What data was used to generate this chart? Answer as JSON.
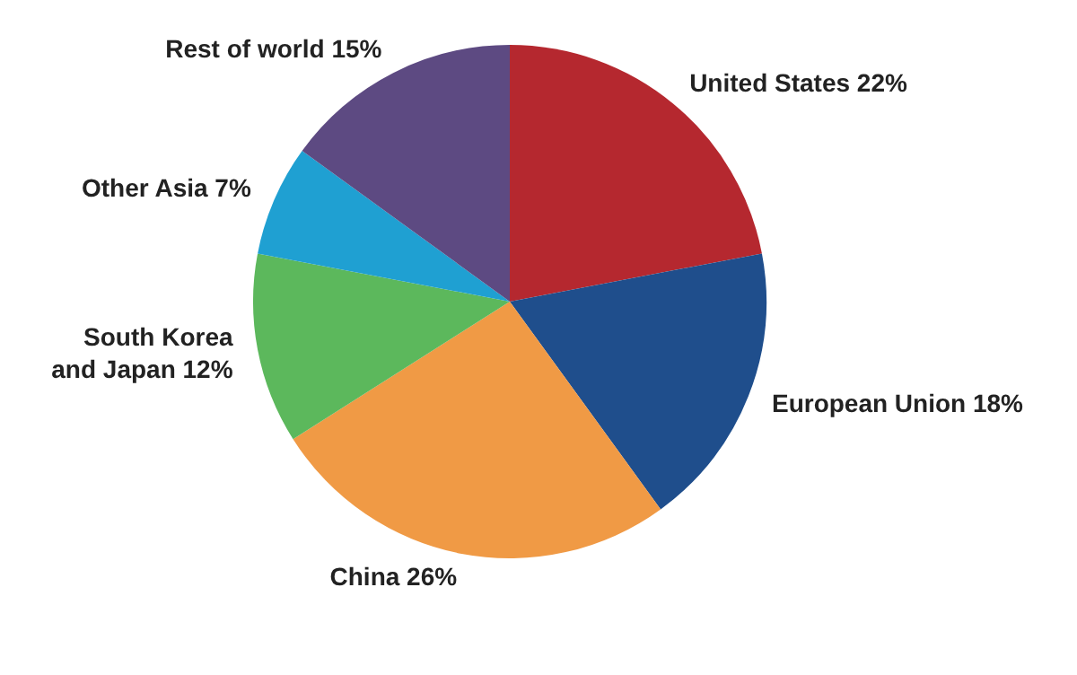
{
  "chart_data": {
    "type": "pie",
    "categories": [
      "United States",
      "European Union",
      "China",
      "South Korea and Japan",
      "Other Asia",
      "Rest of world"
    ],
    "values": [
      22,
      18,
      26,
      12,
      7,
      15
    ],
    "value_labels": [
      "22%",
      "18%",
      "26%",
      "12%",
      "7%",
      "15%"
    ],
    "colors": [
      "#b5282f",
      "#1f4e8c",
      "#f09a45",
      "#5cb85c",
      "#1fa0d2",
      "#5d4a82"
    ],
    "legend": false
  }
}
